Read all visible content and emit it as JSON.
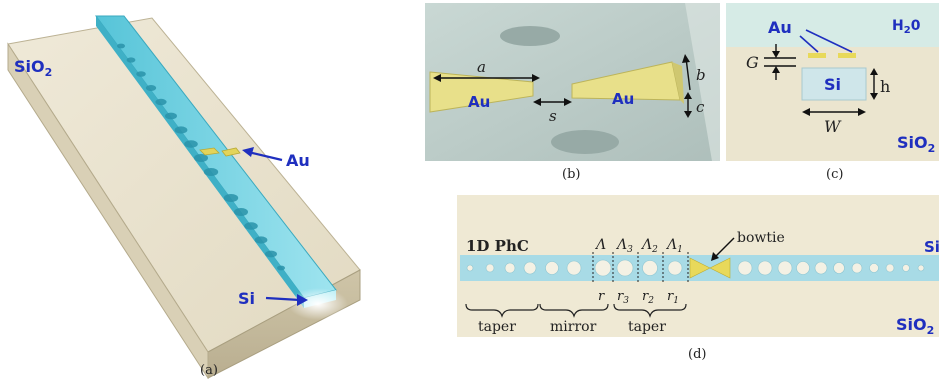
{
  "panel_a": {
    "caption": "(a)",
    "label_sio2": "SiO",
    "label_sio2_sub": "2",
    "label_au": "Au",
    "label_si": "Si"
  },
  "panel_b": {
    "caption": "(b)",
    "label_au_left": "Au",
    "label_au_right": "Au",
    "dim_a": "a",
    "dim_s": "s",
    "dim_b": "b",
    "dim_c": "c"
  },
  "panel_c": {
    "caption": "(c)",
    "label_au": "Au",
    "label_h2o": "H",
    "label_h2o_sub": "2",
    "label_h2o_tail": "0",
    "label_si": "Si",
    "label_sio2": "SiO",
    "label_sio2_sub": "2",
    "dim_g": "G",
    "dim_h": "h",
    "dim_w": "W"
  },
  "panel_d": {
    "caption": "(d)",
    "label_phc": "1D PhC",
    "label_bowtie": "bowtie",
    "label_si": "Si",
    "label_sio2": "SiO",
    "label_sio2_sub": "2",
    "lattice_labels": [
      "Λ",
      "Λ",
      "Λ",
      "Λ"
    ],
    "lattice_subs": [
      "",
      "3",
      "2",
      "1"
    ],
    "radius_labels": [
      "r",
      "r",
      "r",
      "r"
    ],
    "radius_subs": [
      "",
      "3",
      "2",
      "1"
    ],
    "bracket_taper_left": "taper",
    "bracket_mirror": "mirror",
    "bracket_taper_right": "taper"
  },
  "colors": {
    "waveguide": "#7fd8e6",
    "substrate": "#e4dcc6",
    "gold": "#e8e08a",
    "label_blue": "#1f2fbf"
  }
}
